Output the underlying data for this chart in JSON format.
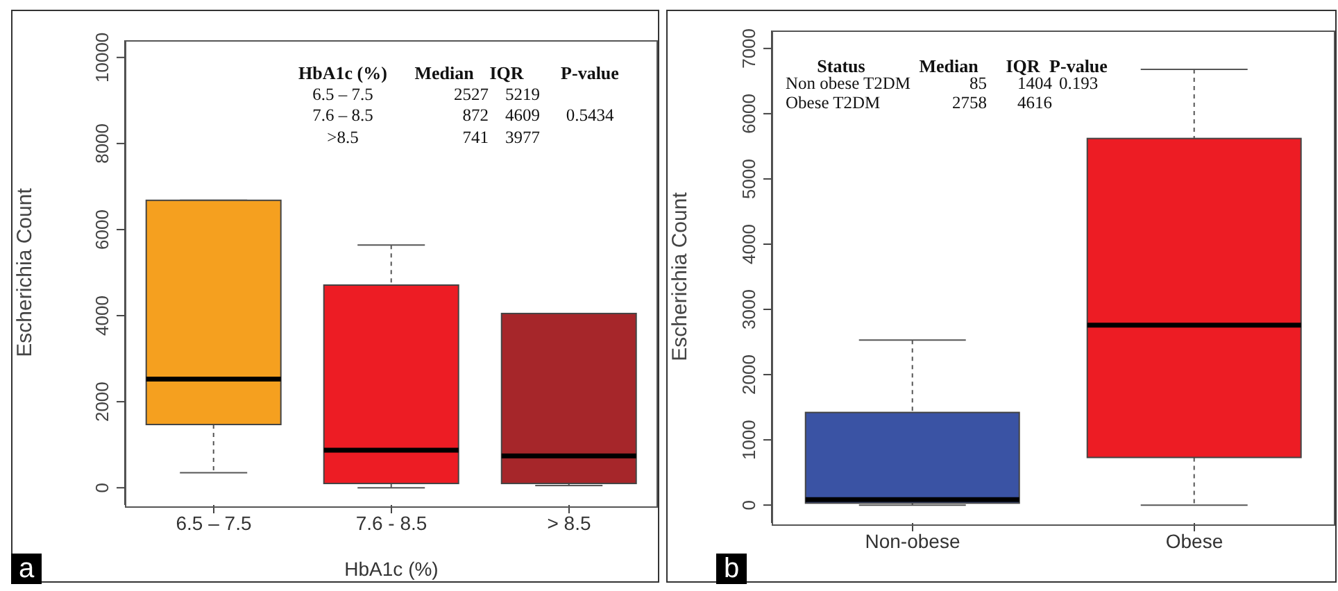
{
  "chart_data": [
    {
      "type": "box",
      "title": "a",
      "xlabel": "HbA1c (%)",
      "ylabel": "Escherichia Count",
      "categories": [
        "6.5 – 7.5",
        "7.6 - 8.5",
        "> 8.5"
      ],
      "colors": [
        "#f5a01f",
        "#ed1c24",
        "#a6262a"
      ],
      "boxes": [
        {
          "low": 350,
          "q1": 1470,
          "median": 2527,
          "q3": 6680,
          "high": 6680
        },
        {
          "low": 0,
          "q1": 100,
          "median": 872,
          "q3": 4710,
          "high": 5640
        },
        {
          "low": 50,
          "q1": 100,
          "median": 741,
          "q3": 4050,
          "high": 4050
        }
      ],
      "ylim": [
        -400,
        10400
      ],
      "yticks": [
        0,
        2000,
        4000,
        6000,
        8000,
        10000
      ],
      "annotations": [
        "HbA1c (%)\tMedian\tIQR\tP-value",
        "6.5 – 7.5\t2527\t5219\t",
        "7.6 – 8.5\t872\t4609\t0.5434",
        ">8.5\t741\t3977\t"
      ]
    },
    {
      "type": "box",
      "title": "b",
      "ylabel": "Escherichia Count",
      "categories": [
        "Non-obese",
        "Obese"
      ],
      "colors": [
        "#3a53a4",
        "#ed1c24"
      ],
      "boxes": [
        {
          "low": 0,
          "q1": 30,
          "median": 85,
          "q3": 1420,
          "high": 2530
        },
        {
          "low": 0,
          "q1": 730,
          "median": 2758,
          "q3": 5620,
          "high": 6680
        }
      ],
      "ylim": [
        -275,
        7275
      ],
      "yticks": [
        0,
        1000,
        2000,
        3000,
        4000,
        5000,
        6000,
        7000
      ],
      "annotations": [
        "Status\tMedian\tIQR\tP-value",
        "Non obese T2DM\t85\t1404\t0.193",
        "Obese T2DM\t2758\t4616\t"
      ]
    }
  ]
}
